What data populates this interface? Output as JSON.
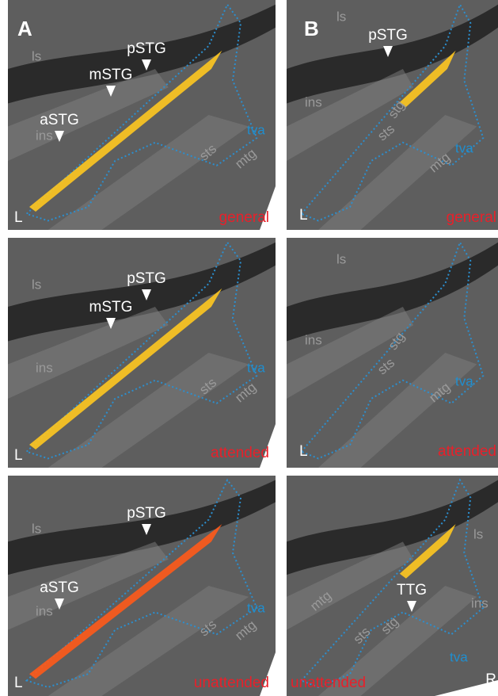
{
  "panels": [
    {
      "letter": "A",
      "rows": [
        {
          "hemisphere": "L",
          "condition": "general",
          "anatomy": [
            "ls",
            "ins",
            "sts",
            "mtg"
          ],
          "peaks": [
            "pSTG",
            "mSTG",
            "aSTG"
          ],
          "roi": "tva"
        },
        {
          "hemisphere": "L",
          "condition": "attended",
          "anatomy": [
            "ls",
            "ins",
            "sts",
            "mtg"
          ],
          "peaks": [
            "pSTG",
            "mSTG"
          ],
          "roi": "tva"
        },
        {
          "hemisphere": "L",
          "condition": "unattended",
          "anatomy": [
            "ls",
            "ins",
            "sts",
            "mtg"
          ],
          "peaks": [
            "pSTG",
            "aSTG"
          ],
          "roi": "tva"
        }
      ]
    },
    {
      "letter": "B",
      "rows": [
        {
          "hemisphere": "L",
          "condition": "general",
          "anatomy": [
            "ls",
            "ins",
            "stg",
            "sts",
            "mtg"
          ],
          "peaks": [
            "pSTG"
          ],
          "roi": "tva"
        },
        {
          "hemisphere": "L",
          "condition": "attended",
          "anatomy": [
            "ls",
            "ins",
            "stg",
            "sts",
            "mtg"
          ],
          "roi": "tva"
        },
        {
          "hemisphere": "R",
          "condition": "unattended",
          "anatomy": [
            "ls",
            "ins",
            "mtg",
            "stg",
            "sts"
          ],
          "peaks": [
            "TTG"
          ],
          "roi": "tva"
        }
      ]
    }
  ]
}
